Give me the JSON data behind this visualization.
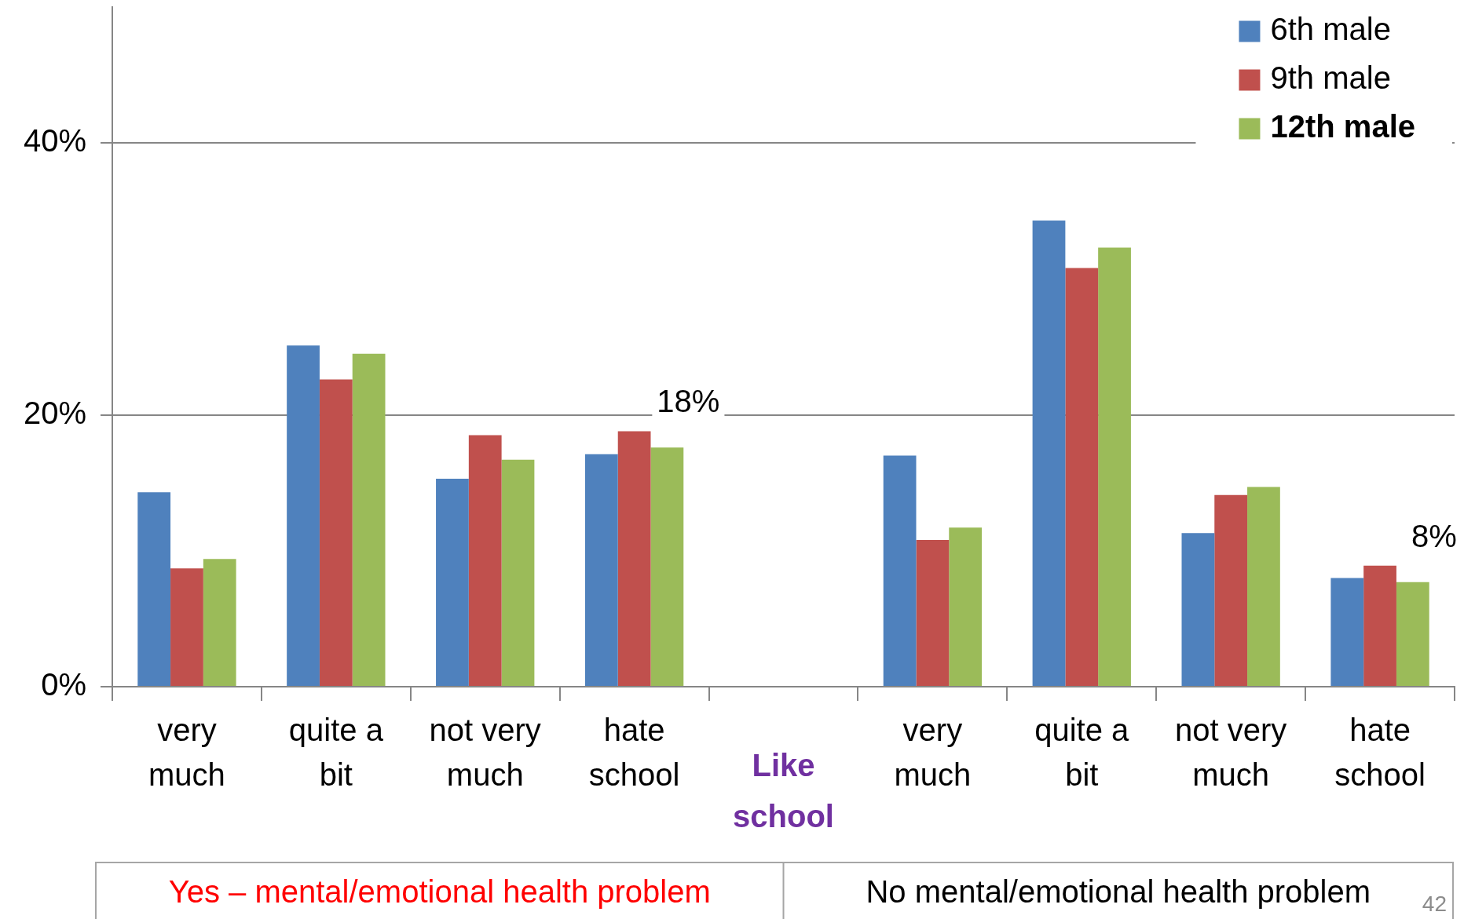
{
  "chart_data": {
    "type": "bar",
    "xlabel": "Like school",
    "categories": [
      "very much",
      "quite a bit",
      "not very much",
      "hate school",
      null,
      "very much",
      "quite a bit",
      "not very much",
      "hate school"
    ],
    "series": [
      {
        "name": "6th male",
        "color": "#4f81bd",
        "values": [
          14.3,
          25.1,
          15.3,
          17.1,
          null,
          17.0,
          34.3,
          11.3,
          8.0
        ]
      },
      {
        "name": "9th male",
        "color": "#c0504d",
        "values": [
          8.7,
          22.6,
          18.5,
          18.8,
          null,
          10.8,
          30.8,
          14.1,
          8.9
        ]
      },
      {
        "name": "12th male",
        "color": "#9bbb59",
        "values": [
          9.4,
          24.5,
          16.7,
          17.6,
          null,
          11.7,
          32.3,
          14.7,
          7.7
        ],
        "value_labels": [
          null,
          null,
          null,
          "18%",
          null,
          null,
          null,
          null,
          "8%"
        ]
      }
    ],
    "ylim": [
      0,
      50
    ],
    "yticks": [
      {
        "value": 0,
        "label": "0%"
      },
      {
        "value": 20,
        "label": "20%"
      },
      {
        "value": 40,
        "label": "40%"
      }
    ],
    "grid": "y",
    "legend": "top right",
    "annotations": [
      "Yes – mental/emotional health problem",
      "No mental/emotional health problem",
      "42"
    ]
  }
}
